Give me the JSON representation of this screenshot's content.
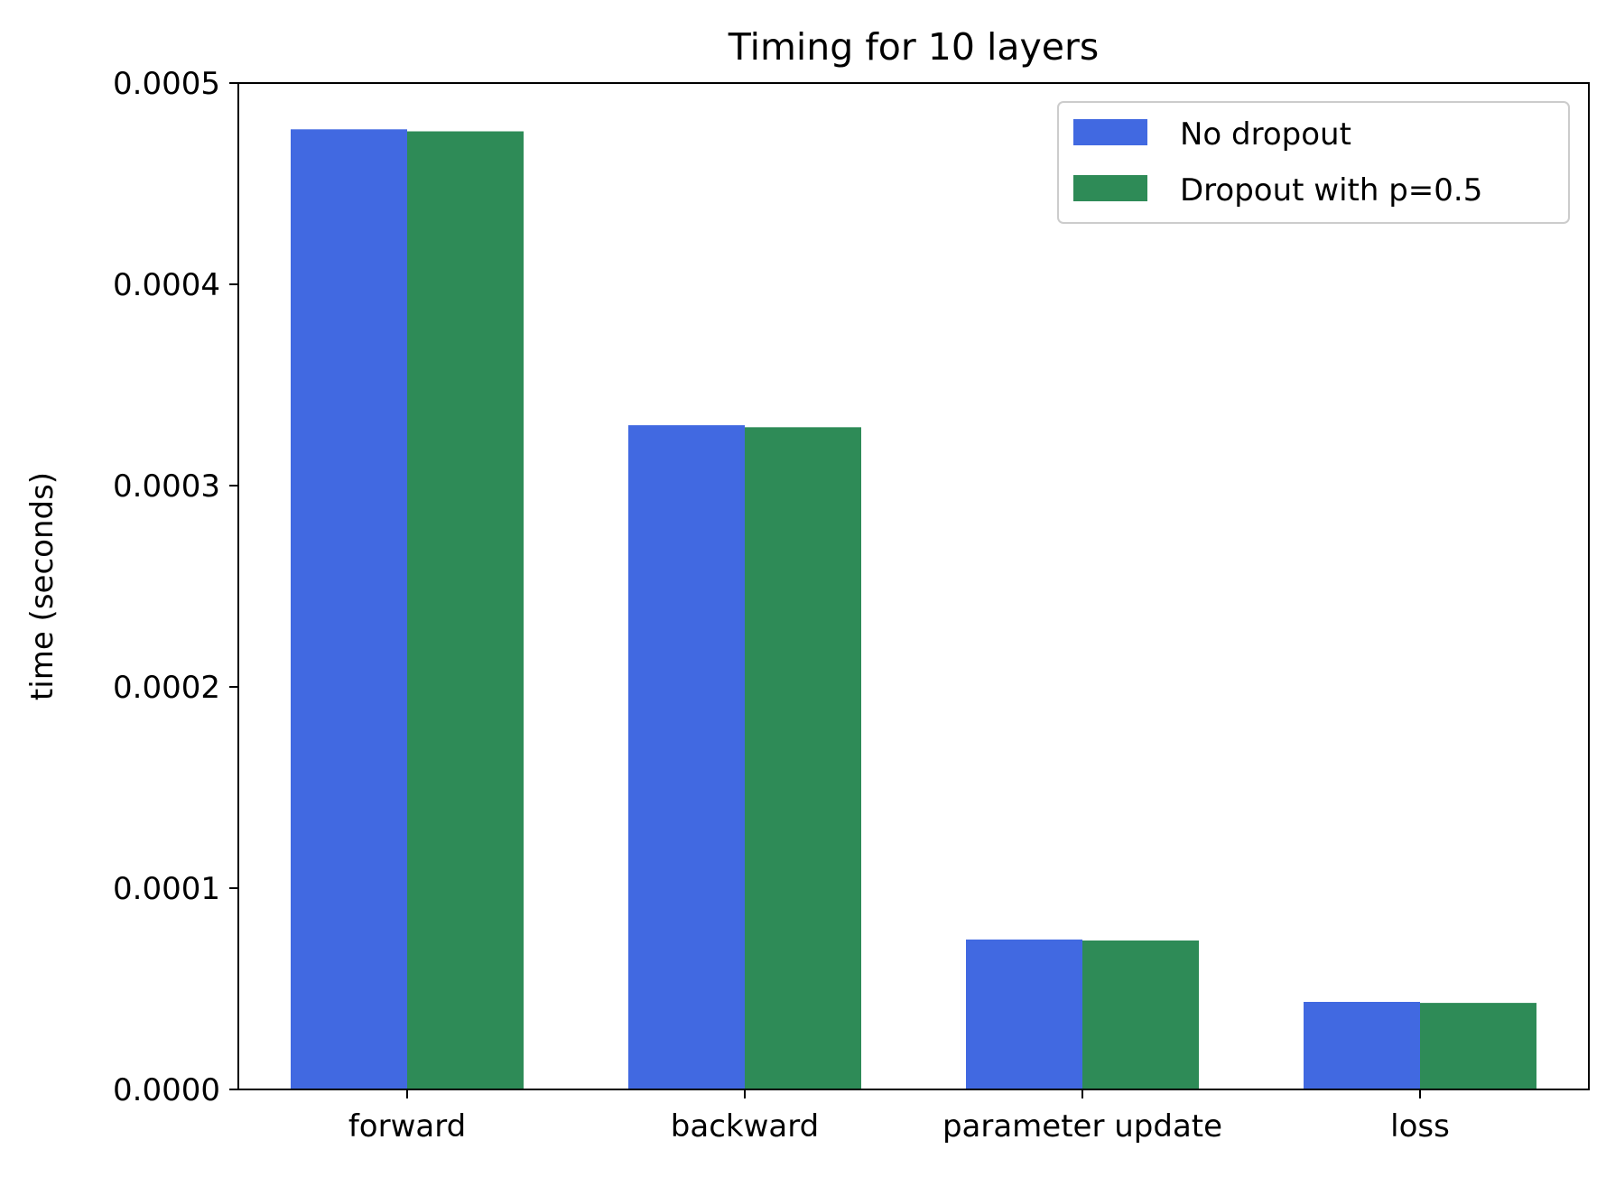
{
  "chart_data": {
    "type": "bar",
    "title": "Timing for 10 layers",
    "xlabel": "",
    "ylabel": "time (seconds)",
    "categories": [
      "forward",
      "backward",
      "parameter update",
      "loss"
    ],
    "series": [
      {
        "name": "No dropout",
        "color": "#4169e1",
        "values": [
          0.000477,
          0.00033,
          7.45e-05,
          4.35e-05
        ]
      },
      {
        "name": "Dropout with p=0.5",
        "color": "#2e8b57",
        "values": [
          0.000476,
          0.000329,
          7.4e-05,
          4.3e-05
        ]
      }
    ],
    "ylim": [
      0,
      0.0005
    ],
    "yticks": [
      "0.0000",
      "0.0001",
      "0.0002",
      "0.0003",
      "0.0004",
      "0.0005"
    ],
    "grid": false,
    "legend_position": "top-right"
  }
}
